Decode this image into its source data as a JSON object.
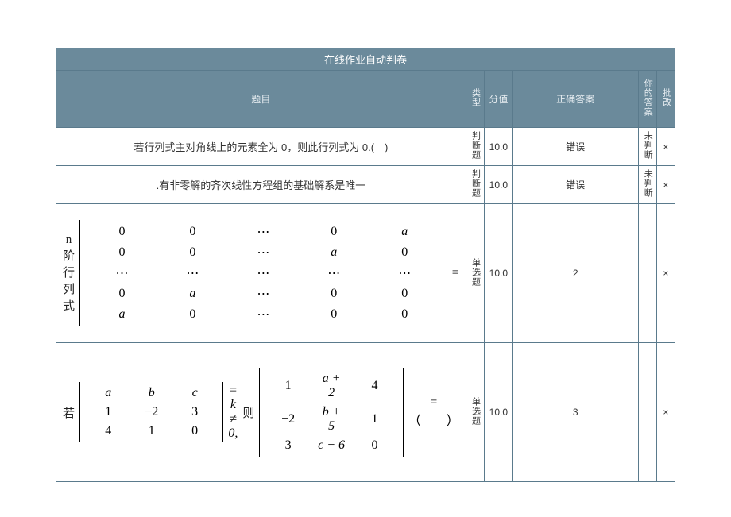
{
  "table": {
    "title": "在线作业自动判卷",
    "border_color": "#5a7a8c",
    "header_bg": "#6b8a9b",
    "header_fg": "#e8eef2",
    "columns": {
      "question": "题目",
      "type": "类型",
      "points": "分值",
      "correct": "正确答案",
      "your_answer": "你的答案",
      "mark": "批改"
    },
    "col_widths": {
      "question": 490,
      "type": 22,
      "points": 34,
      "correct": 150,
      "your_answer": 22,
      "mark": 22
    }
  },
  "rows": [
    {
      "kind": "text",
      "question": "若行列式主对角线上的元素全为 0，则此行列式为 0.(　)",
      "type": "判断题",
      "points": "10.0",
      "correct": "错误",
      "your_answer": "未判断",
      "mark": "×"
    },
    {
      "kind": "text",
      "question": ".有非零解的齐次线性方程组的基础解系是唯一",
      "type": "判断题",
      "points": "10.0",
      "correct": "错误",
      "your_answer": "未判断",
      "mark": "×"
    },
    {
      "kind": "matrix1",
      "prefix": "n 阶行列式",
      "matrix": [
        [
          "0",
          "0",
          "⋯",
          "0",
          "a"
        ],
        [
          "0",
          "0",
          "⋯",
          "a",
          "0"
        ],
        [
          "⋯",
          "⋯",
          "⋯",
          "⋯",
          "⋯"
        ],
        [
          "0",
          "a",
          "⋯",
          "0",
          "0"
        ],
        [
          "a",
          "0",
          "⋯",
          "0",
          "0"
        ]
      ],
      "suffix": "=",
      "type": "单选题",
      "points": "10.0",
      "correct": "2",
      "your_answer": "",
      "mark": "×"
    },
    {
      "kind": "matrix2",
      "prefix": "若",
      "matrixA": [
        [
          "a",
          "b",
          "c"
        ],
        [
          "1",
          "−2",
          "3"
        ],
        [
          "4",
          "1",
          "0"
        ]
      ],
      "mid1": "= k ≠ 0,",
      "mid2": "则",
      "matrixB": [
        [
          "1",
          "a + 2",
          "4"
        ],
        [
          "−2",
          "b + 5",
          "1"
        ],
        [
          "3",
          "c − 6",
          "0"
        ]
      ],
      "suffix": "= （　　）",
      "type": "单选题",
      "points": "10.0",
      "correct": "3",
      "your_answer": "",
      "mark": "×"
    }
  ],
  "style": {
    "font_body": "Microsoft YaHei, SimSun, sans-serif",
    "font_math": "Times New Roman, serif",
    "bg": "#ffffff",
    "text_color": "#333333",
    "font_size_body": 13,
    "font_size_math": 16
  }
}
